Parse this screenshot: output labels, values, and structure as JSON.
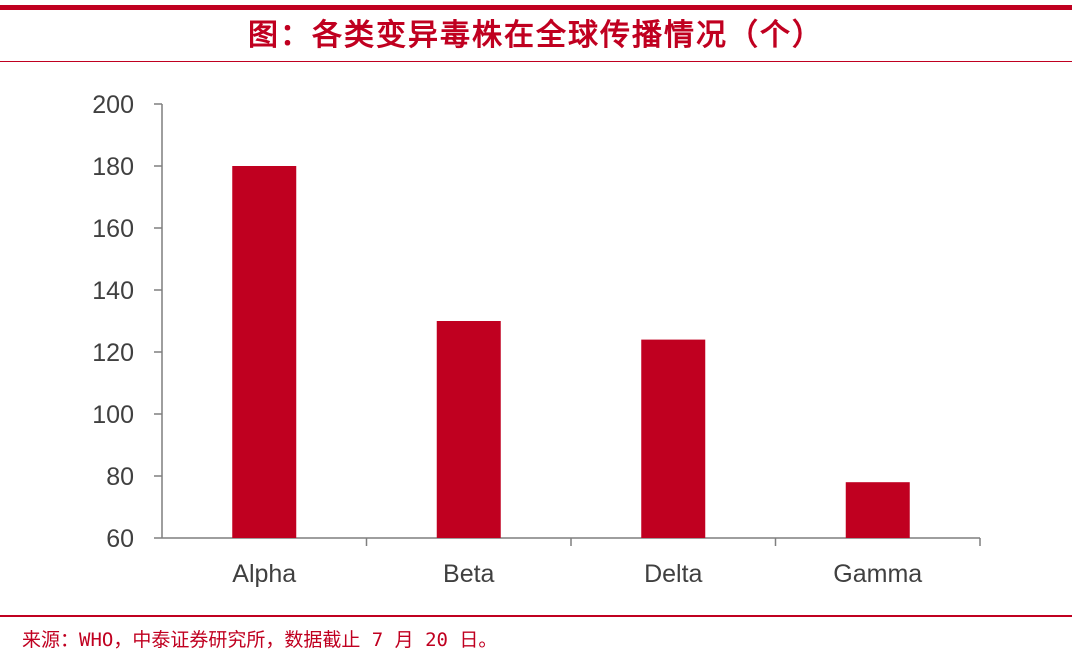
{
  "header": {
    "title": "图：各类变异毒株在全球传播情况（个）"
  },
  "footer": {
    "source": "来源：WHO，中泰证券研究所，数据截止 7 月 20 日。"
  },
  "colors": {
    "accent": "#c00020",
    "axis": "#7f7f7f",
    "text": "#404040"
  },
  "chart_data": {
    "type": "bar",
    "title": "图：各类变异毒株在全球传播情况（个）",
    "categories": [
      "Alpha",
      "Beta",
      "Delta",
      "Gamma"
    ],
    "values": [
      180,
      130,
      124,
      78
    ],
    "ylim": [
      60,
      200
    ],
    "yticks": [
      60,
      80,
      100,
      120,
      140,
      160,
      180,
      200
    ],
    "xlabel": "",
    "ylabel": "",
    "grid": false,
    "legend": "none"
  }
}
